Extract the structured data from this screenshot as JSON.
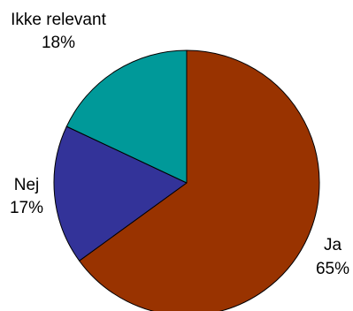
{
  "chart_data": {
    "type": "pie",
    "title": "",
    "slices": [
      {
        "label": "Ja",
        "value": 65,
        "value_label": "65%",
        "color": "#993300"
      },
      {
        "label": "Nej",
        "value": 17,
        "value_label": "17%",
        "color": "#333399"
      },
      {
        "label": "Ikke relevant",
        "value": 18,
        "value_label": "18%",
        "color": "#009999"
      }
    ],
    "start": "top",
    "direction": "clockwise",
    "legend": "none"
  }
}
